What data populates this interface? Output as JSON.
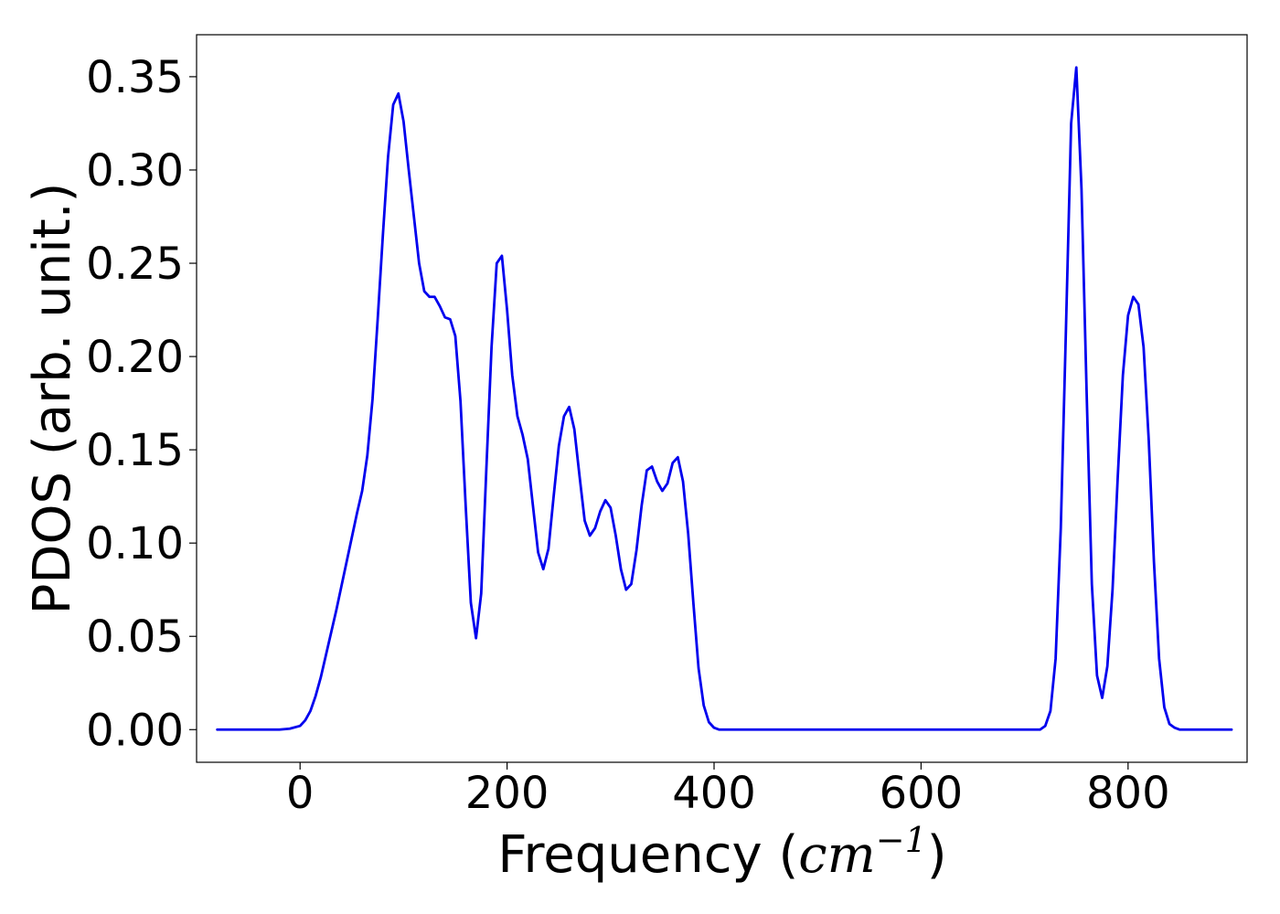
{
  "chart_data": {
    "type": "line",
    "xlabel": {
      "prefix": "Frequency (",
      "var": "cm",
      "sup": "−1",
      "suffix": ")"
    },
    "ylabel": "PDOS (arb. unit.)",
    "xlim": [
      -100,
      915
    ],
    "ylim": [
      -0.0175,
      0.3725
    ],
    "xticks": [
      0,
      200,
      400,
      600,
      800
    ],
    "xtick_labels": [
      "0",
      "200",
      "400",
      "600",
      "800"
    ],
    "yticks": [
      0.0,
      0.05,
      0.1,
      0.15,
      0.2,
      0.25,
      0.3,
      0.35
    ],
    "ytick_labels": [
      "0.00",
      "0.05",
      "0.10",
      "0.15",
      "0.20",
      "0.25",
      "0.30",
      "0.35"
    ],
    "grid": false,
    "line_color": "#0000ee",
    "series": [
      {
        "x": [
          -80,
          -20,
          -10,
          0,
          5,
          10,
          15,
          20,
          25,
          30,
          35,
          40,
          45,
          50,
          55,
          60,
          65,
          70,
          75,
          80,
          85,
          90,
          95,
          100,
          105,
          110,
          115,
          120,
          125,
          130,
          135,
          140,
          145,
          150,
          155,
          160,
          165,
          170,
          175,
          180,
          185,
          190,
          195,
          200,
          205,
          210,
          215,
          220,
          225,
          230,
          235,
          240,
          245,
          250,
          255,
          260,
          265,
          270,
          275,
          280,
          285,
          290,
          295,
          300,
          305,
          310,
          315,
          320,
          325,
          330,
          335,
          340,
          345,
          350,
          355,
          360,
          365,
          370,
          375,
          380,
          385,
          390,
          395,
          400,
          405,
          410,
          450,
          500,
          600,
          700,
          710,
          715,
          720,
          725,
          730,
          735,
          740,
          745,
          750,
          755,
          760,
          765,
          770,
          775,
          780,
          785,
          790,
          795,
          800,
          805,
          810,
          815,
          820,
          825,
          830,
          835,
          840,
          845,
          850,
          900
        ],
        "y": [
          0.0,
          0.0,
          0.0005,
          0.002,
          0.005,
          0.01,
          0.018,
          0.028,
          0.04,
          0.052,
          0.064,
          0.077,
          0.09,
          0.103,
          0.116,
          0.128,
          0.147,
          0.177,
          0.22,
          0.265,
          0.307,
          0.335,
          0.341,
          0.326,
          0.3,
          0.275,
          0.25,
          0.235,
          0.232,
          0.232,
          0.227,
          0.221,
          0.22,
          0.211,
          0.176,
          0.12,
          0.068,
          0.049,
          0.073,
          0.14,
          0.205,
          0.25,
          0.254,
          0.225,
          0.19,
          0.168,
          0.158,
          0.145,
          0.12,
          0.095,
          0.086,
          0.097,
          0.125,
          0.152,
          0.168,
          0.173,
          0.161,
          0.136,
          0.112,
          0.104,
          0.108,
          0.117,
          0.123,
          0.119,
          0.104,
          0.086,
          0.075,
          0.078,
          0.096,
          0.12,
          0.139,
          0.141,
          0.133,
          0.128,
          0.132,
          0.143,
          0.146,
          0.133,
          0.105,
          0.068,
          0.033,
          0.013,
          0.004,
          0.001,
          0.0,
          0.0,
          0.0,
          0.0,
          0.0,
          0.0,
          0.0,
          0.0,
          0.002,
          0.01,
          0.038,
          0.108,
          0.215,
          0.325,
          0.355,
          0.29,
          0.18,
          0.078,
          0.029,
          0.017,
          0.034,
          0.075,
          0.135,
          0.19,
          0.222,
          0.232,
          0.228,
          0.205,
          0.155,
          0.09,
          0.038,
          0.012,
          0.003,
          0.001,
          0.0,
          0.0
        ]
      }
    ]
  }
}
